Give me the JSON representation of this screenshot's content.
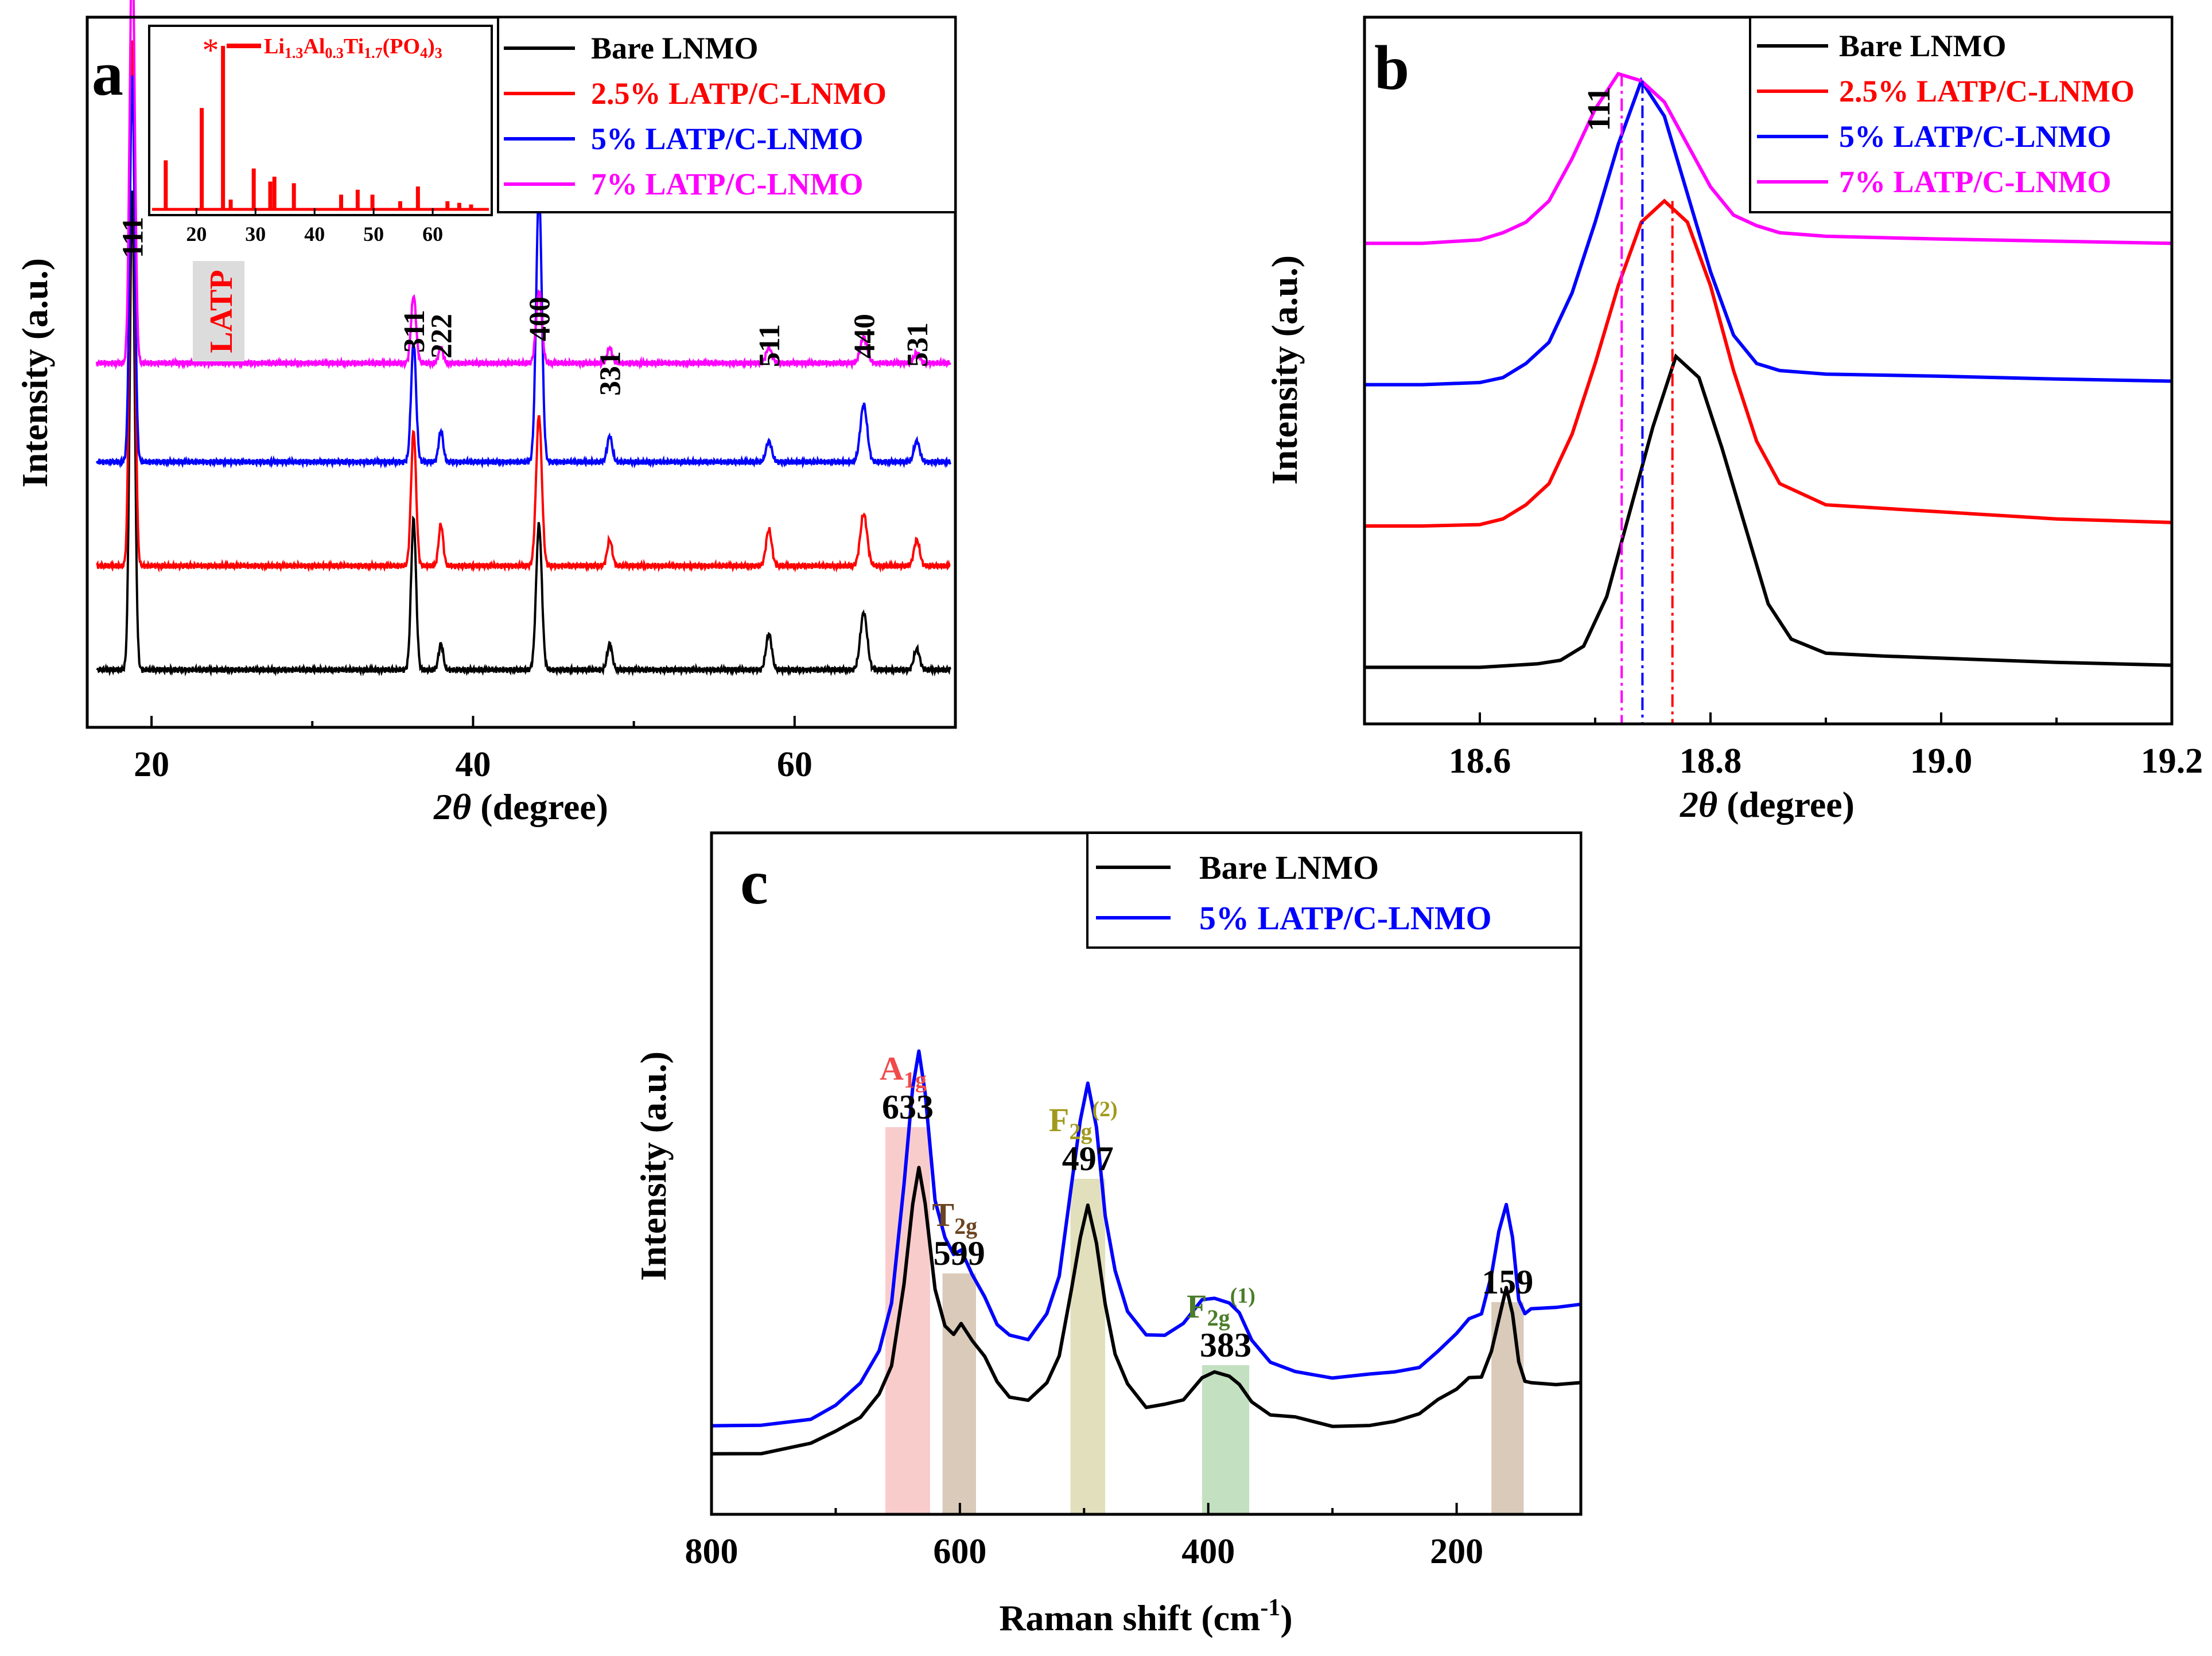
{
  "colors": {
    "bare": "#000000",
    "p25": "#ff0000",
    "p5": "#0000ff",
    "p7": "#ff00ff",
    "a1g_band": "#f7b7b7",
    "t2g_band": "#c9b39d",
    "f2g2_band": "#d6d39f",
    "f2g1_band": "#a9d3a6",
    "b159_band": "#c9b39d",
    "a1g_text": "#f04a4a",
    "t2g_text": "#6b4420",
    "f2g2_text": "#a09a1c",
    "f2g1_text": "#4b7d2a",
    "latp_bg": "#dcdcdc"
  },
  "chart_data": [
    {
      "panel": "a",
      "type": "line",
      "xlabel_var": "2θ",
      "xlabel_unit": "(degree)",
      "ylabel": "Intensity (a.u.)",
      "xlim": [
        16,
        70
      ],
      "xticks": [
        "20",
        "40",
        "60"
      ],
      "legend": [
        "Bare LNMO",
        "2.5% LATP/C-LNMO",
        "5% LATP/C-LNMO",
        "7% LATP/C-LNMO"
      ],
      "legend_position": "top-right",
      "peak_labels": [
        {
          "label": "111",
          "x": 18.8
        },
        {
          "label": "311",
          "x": 36.3
        },
        {
          "label": "222",
          "x": 38.0
        },
        {
          "label": "400",
          "x": 44.1
        },
        {
          "label": "331",
          "x": 48.5
        },
        {
          "label": "511",
          "x": 58.4
        },
        {
          "label": "440",
          "x": 64.3
        },
        {
          "label": "531",
          "x": 67.6
        }
      ],
      "latp_marker": {
        "label": "LATP",
        "x": 24.5
      },
      "peaks": [
        {
          "x": 18.8,
          "w": 0.22,
          "h": [
            92,
            101,
            74,
            82
          ]
        },
        {
          "x": 36.3,
          "w": 0.22,
          "h": [
            29,
            26,
            23,
            13
          ]
        },
        {
          "x": 38.0,
          "w": 0.2,
          "h": [
            5,
            8,
            6,
            3
          ]
        },
        {
          "x": 44.1,
          "w": 0.25,
          "h": [
            28,
            29,
            52,
            14
          ]
        },
        {
          "x": 48.5,
          "w": 0.22,
          "h": [
            5,
            5,
            5,
            3
          ]
        },
        {
          "x": 58.4,
          "w": 0.25,
          "h": [
            7,
            7,
            4,
            3
          ]
        },
        {
          "x": 64.3,
          "w": 0.3,
          "h": [
            11,
            10,
            11,
            5
          ]
        },
        {
          "x": 67.6,
          "w": 0.25,
          "h": [
            4,
            5,
            4,
            2
          ]
        }
      ],
      "baselines": [
        5,
        25,
        45,
        64
      ],
      "ylim": [
        0,
        130
      ],
      "inset": {
        "type": "bar",
        "legend": "Li1.3Al0.3Ti1.7(PO4)3",
        "xlim": [
          12,
          70
        ],
        "xticks": [
          "20",
          "30",
          "40",
          "50",
          "60"
        ],
        "star_x": 24.5,
        "peak_x": [
          14.8,
          20.9,
          24.5,
          25.8,
          29.7,
          32.5,
          33.2,
          36.5,
          44.5,
          47.3,
          49.8,
          54.5,
          57.5,
          62.5,
          64.5,
          66.5
        ],
        "peak_h": [
          30,
          62,
          100,
          6,
          25,
          17,
          20,
          16,
          9,
          12,
          9,
          5,
          14,
          5,
          4,
          3
        ]
      }
    },
    {
      "panel": "b",
      "type": "line",
      "xlabel_var": "2θ",
      "xlabel_unit": "(degree)",
      "ylabel": "Intensity (a.u.)",
      "xlim": [
        18.5,
        19.2
      ],
      "xticks": [
        "18.6",
        "18.8",
        "19.0",
        "19.2"
      ],
      "peak_label": "111",
      "legend": [
        "Bare LNMO",
        "2.5% LATP/C-LNMO",
        "5% LATP/C-LNMO",
        "7% LATP/C-LNMO"
      ],
      "legend_position": "top-right",
      "dashed_lines_x": [
        18.723,
        18.741,
        18.767
      ],
      "ylim": [
        0,
        100
      ],
      "series": [
        {
          "name": "Bare LNMO",
          "x": [
            18.5,
            18.55,
            18.6,
            18.65,
            18.67,
            18.69,
            18.71,
            18.73,
            18.75,
            18.77,
            18.79,
            18.81,
            18.83,
            18.85,
            18.87,
            18.9,
            18.95,
            19.0,
            19.1,
            19.2
          ],
          "y": [
            8,
            8,
            8,
            8.5,
            9,
            11,
            18,
            30,
            42,
            52,
            49,
            39,
            28,
            17,
            12,
            10,
            9.6,
            9.3,
            8.7,
            8.3
          ]
        },
        {
          "name": "2.5% LATP/C-LNMO",
          "x": [
            18.5,
            18.55,
            18.6,
            18.62,
            18.64,
            18.66,
            18.68,
            18.7,
            18.72,
            18.74,
            18.76,
            18.78,
            18.8,
            18.82,
            18.84,
            18.86,
            18.9,
            19.0,
            19.1,
            19.2
          ],
          "y": [
            28,
            28,
            28.2,
            29,
            31,
            34,
            41,
            51,
            62,
            71,
            74,
            71,
            62,
            50,
            40,
            34,
            31,
            30,
            29,
            28.5
          ]
        },
        {
          "name": "5% LATP/C-LNMO",
          "x": [
            18.5,
            18.55,
            18.6,
            18.62,
            18.64,
            18.66,
            18.68,
            18.7,
            18.72,
            18.74,
            18.76,
            18.78,
            18.8,
            18.82,
            18.84,
            18.86,
            18.9,
            19.0,
            19.1,
            19.2
          ],
          "y": [
            48,
            48,
            48.3,
            49,
            51,
            54,
            61,
            71,
            82,
            91,
            86,
            75,
            64,
            55,
            51,
            50,
            49.5,
            49.2,
            48.8,
            48.5
          ]
        },
        {
          "name": "7% LATP/C-LNMO",
          "x": [
            18.5,
            18.55,
            18.6,
            18.62,
            18.64,
            18.66,
            18.68,
            18.7,
            18.72,
            18.74,
            18.76,
            18.78,
            18.8,
            18.82,
            18.84,
            18.86,
            18.9,
            19.0,
            19.1,
            19.2
          ],
          "y": [
            68,
            68,
            68.5,
            69.5,
            71,
            74,
            80,
            87,
            92,
            91,
            88,
            82,
            76,
            72,
            70.5,
            69.5,
            69,
            68.6,
            68.3,
            68
          ]
        }
      ]
    },
    {
      "panel": "c",
      "type": "line",
      "xlabel": "Raman shift (cm",
      "xlabel_sup": "-1",
      "xlabel_end": ")",
      "ylabel": "Intensity (a.u.)",
      "xlim": [
        800,
        100
      ],
      "xticks": [
        "800",
        "600",
        "400",
        "200"
      ],
      "legend": [
        "Bare LNMO",
        "5% LATP/C-LNMO"
      ],
      "legend_position": "top-right",
      "ylim": [
        0,
        100
      ],
      "bands": [
        {
          "mode": "A",
          "sub": "1g",
          "sup": "",
          "value": "633",
          "x0": 660,
          "x1": 624
        },
        {
          "mode": "T",
          "sub": "2g",
          "sup": "",
          "value": "599",
          "x0": 614,
          "x1": 587
        },
        {
          "mode": "F",
          "sub": "2g",
          "sup": "(2)",
          "value": "497",
          "x0": 511,
          "x1": 483
        },
        {
          "mode": "F",
          "sub": "2g",
          "sup": "(1)",
          "value": "383",
          "x0": 405,
          "x1": 367
        },
        {
          "mode": "",
          "sub": "",
          "sup": "",
          "value": "159",
          "x0": 172,
          "x1": 146
        }
      ],
      "series": [
        {
          "name": "Bare LNMO",
          "x": [
            800,
            760,
            720,
            700,
            680,
            665,
            655,
            645,
            638,
            633,
            628,
            620,
            612,
            605,
            599,
            590,
            580,
            570,
            560,
            545,
            530,
            520,
            510,
            503,
            497,
            490,
            483,
            475,
            465,
            450,
            435,
            420,
            405,
            395,
            383,
            375,
            365,
            350,
            330,
            300,
            270,
            250,
            230,
            215,
            200,
            190,
            180,
            172,
            166,
            160,
            155,
            150,
            145,
            140,
            120,
            100
          ],
          "y": [
            5,
            6,
            7,
            9,
            12,
            16,
            22,
            37,
            52,
            58,
            52,
            36,
            29,
            28,
            29,
            27,
            23,
            19,
            16,
            15,
            18,
            24,
            36,
            46,
            51,
            45,
            33,
            24,
            18,
            14,
            15,
            16,
            20,
            20,
            20,
            18,
            15,
            13,
            12,
            11,
            11,
            12,
            13,
            16,
            18,
            19,
            20,
            24,
            31,
            36,
            31,
            23,
            19,
            18,
            18,
            19
          ]
        },
        {
          "name": "5% LATP/C-LNMO",
          "x": [
            800,
            760,
            720,
            700,
            680,
            665,
            655,
            645,
            638,
            633,
            628,
            620,
            612,
            605,
            599,
            590,
            580,
            570,
            560,
            545,
            530,
            520,
            510,
            503,
            497,
            490,
            483,
            475,
            465,
            450,
            435,
            420,
            405,
            395,
            383,
            375,
            365,
            350,
            330,
            300,
            270,
            250,
            230,
            215,
            200,
            190,
            180,
            172,
            166,
            160,
            155,
            150,
            145,
            140,
            120,
            100
          ],
          "y": [
            10,
            11,
            12,
            14,
            18,
            24,
            34,
            55,
            74,
            80,
            72,
            53,
            45,
            43,
            43,
            39,
            34,
            30,
            27,
            26,
            31,
            39,
            55,
            68,
            74,
            66,
            50,
            39,
            32,
            28,
            28,
            30,
            34,
            34,
            34,
            31,
            27,
            23,
            21,
            20,
            20,
            21,
            22,
            25,
            28,
            30,
            32,
            38,
            47,
            52,
            45,
            34,
            32,
            32,
            32,
            33
          ]
        }
      ]
    }
  ]
}
